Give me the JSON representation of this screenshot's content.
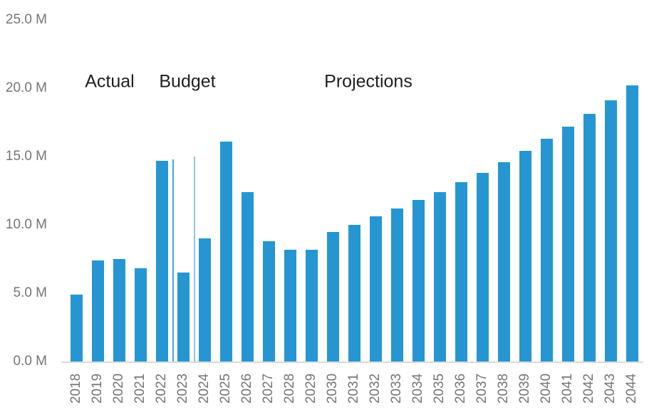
{
  "chart_data": {
    "type": "bar",
    "title": "",
    "xlabel": "",
    "ylabel": "",
    "unit": "M",
    "ylim": [
      0,
      25
    ],
    "grid": false,
    "legend_position": "none",
    "categories": [
      "2018",
      "2019",
      "2020",
      "2021",
      "2022",
      "2023",
      "2024",
      "2025",
      "2026",
      "2027",
      "2028",
      "2029",
      "2030",
      "2031",
      "2032",
      "2033",
      "2034",
      "2035",
      "2036",
      "2037",
      "2038",
      "2039",
      "2040",
      "2041",
      "2042",
      "2043",
      "2044"
    ],
    "values": [
      4.9,
      7.4,
      7.5,
      6.8,
      14.7,
      6.5,
      9.0,
      16.1,
      12.4,
      8.8,
      8.2,
      8.2,
      9.5,
      10.0,
      10.6,
      11.2,
      11.8,
      12.4,
      13.1,
      13.8,
      14.6,
      15.4,
      16.3,
      17.2,
      18.1,
      19.1,
      20.2
    ],
    "y_ticks": [
      {
        "value": 0,
        "label": "0.0 M"
      },
      {
        "value": 5,
        "label": "5.0 M"
      },
      {
        "value": 10,
        "label": "10.0 M"
      },
      {
        "value": 15,
        "label": "15.0 M"
      },
      {
        "value": 20,
        "label": "20.0 M"
      },
      {
        "value": 25,
        "label": "25.0 M"
      }
    ],
    "zones": [
      {
        "label": "Actual",
        "categories": "2018-2022"
      },
      {
        "label": "Budget",
        "categories": "2023"
      },
      {
        "label": "Projections",
        "categories": "2024-2044"
      }
    ],
    "dividers": [
      {
        "after_category": "2022",
        "top_value": 14.8,
        "color": "#4aa3d8"
      },
      {
        "after_category": "2023",
        "top_value": 15.0,
        "color": "#8fc6e6"
      }
    ],
    "colors": {
      "bar": "#2596d2",
      "axis_line": "#d8d8d8",
      "tick_labels": "#757575",
      "zone_labels": "#1f1f1f",
      "background": "#ffffff"
    }
  }
}
